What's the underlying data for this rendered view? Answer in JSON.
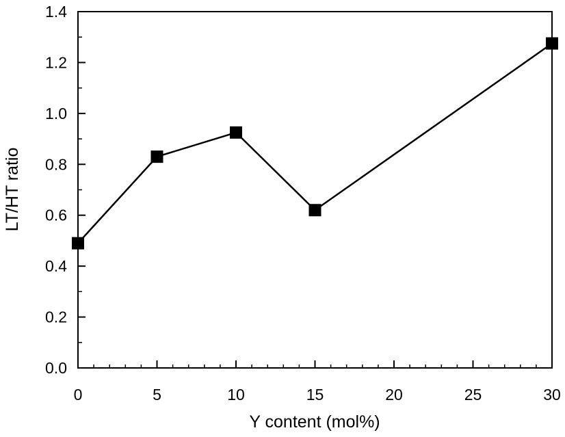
{
  "chart_data": {
    "type": "line",
    "xlabel": "Y content (mol%)",
    "ylabel": "LT/HT ratio",
    "xlim": [
      0,
      30
    ],
    "ylim": [
      0,
      1.4
    ],
    "x_ticks": [
      "0",
      "5",
      "10",
      "15",
      "20",
      "25",
      "30"
    ],
    "y_ticks": [
      "0.0",
      "0.2",
      "0.4",
      "0.6",
      "0.8",
      "1.0",
      "1.2",
      "1.4"
    ],
    "x_tick_values": [
      0,
      5,
      10,
      15,
      20,
      25,
      30
    ],
    "y_tick_values": [
      0,
      0.2,
      0.4,
      0.6,
      0.8,
      1.0,
      1.2,
      1.4
    ],
    "x_minor_step": 1,
    "y_minor_step": 0.1,
    "grid": false,
    "legend": "none",
    "marker": "square",
    "line_color": "#000000",
    "marker_color": "#000000",
    "series": [
      {
        "x": [
          0,
          5,
          10,
          15,
          30
        ],
        "y": [
          0.49,
          0.83,
          0.925,
          0.62,
          1.275
        ]
      }
    ]
  }
}
